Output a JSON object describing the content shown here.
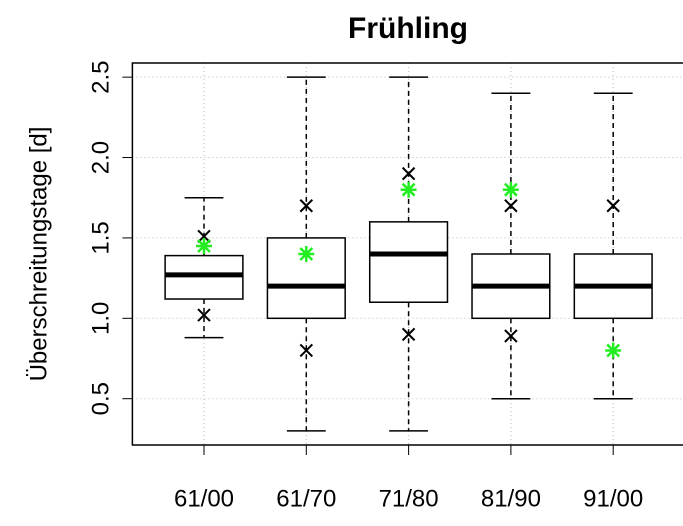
{
  "chart_data": {
    "type": "box",
    "title": "Frühling",
    "y_label": "Überschreitungstage [d]",
    "categories": [
      "61/00",
      "61/70",
      "71/80",
      "81/90",
      "91/00"
    ],
    "boxes": [
      {
        "min": 0.88,
        "q1": 1.12,
        "median": 1.27,
        "q3": 1.39,
        "max": 1.75
      },
      {
        "min": 0.3,
        "q1": 1.0,
        "median": 1.2,
        "q3": 1.5,
        "max": 2.5
      },
      {
        "min": 0.3,
        "q1": 1.1,
        "median": 1.4,
        "q3": 1.6,
        "max": 2.5
      },
      {
        "min": 0.5,
        "q1": 1.0,
        "median": 1.2,
        "q3": 1.4,
        "max": 2.4
      },
      {
        "min": 0.5,
        "q1": 1.0,
        "median": 1.2,
        "q3": 1.4,
        "max": 2.4
      }
    ],
    "markers": [
      {
        "shape": "x",
        "color": "#000000",
        "values": [
          1.51,
          1.7,
          1.9,
          1.7,
          1.7
        ]
      },
      {
        "shape": "x",
        "color": "#000000",
        "values": [
          1.02,
          0.8,
          0.9,
          0.89,
          null
        ]
      },
      {
        "shape": "star",
        "color": "#22ee22",
        "values": [
          1.45,
          1.4,
          1.8,
          1.8,
          0.8
        ]
      }
    ],
    "ylim": [
      0.212,
      2.588
    ],
    "yticks": [
      0.5,
      1.0,
      1.5,
      2.0,
      2.5
    ],
    "grid": true
  }
}
